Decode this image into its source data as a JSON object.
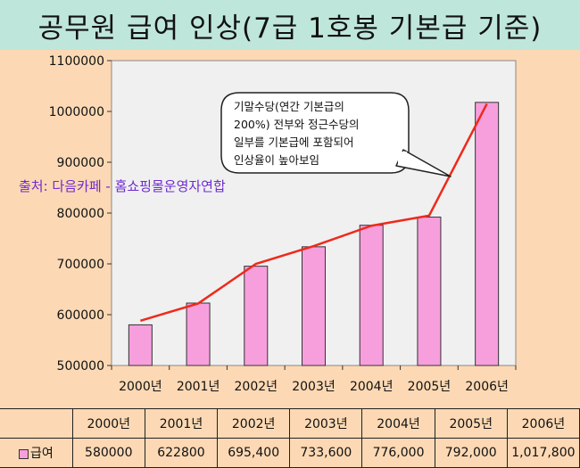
{
  "title": "공무원 급여 인상(7급 1호봉 기본급 기준)",
  "source_note": "출처: 다음카페 - 홈쇼핑몰운영자연합",
  "callout_text": [
    "기말수당(연간 기본급의",
    "200%) 전부와 정근수당의",
    "일부를 기본급에 포함되어",
    "인상율이 높아보임"
  ],
  "colors": {
    "bar": "#f79fdd",
    "line": "#ee2a1c",
    "background": "#fcd9b4",
    "title_bar": "#bfe6da",
    "plot_area": "#f0f0f0"
  },
  "chart_data": {
    "type": "bar",
    "categories": [
      "2000년",
      "2001년",
      "2002년",
      "2003년",
      "2004년",
      "2005년",
      "2006년"
    ],
    "series": [
      {
        "name": "급여",
        "values": [
          580000,
          622800,
          695400,
          733600,
          776000,
          792000,
          1017800
        ]
      }
    ],
    "trend_line_values": [
      588000,
      622000,
      700000,
      735000,
      775000,
      795000,
      1015000
    ],
    "y_ticks": [
      "500000",
      "600000",
      "700000",
      "800000",
      "900000",
      "1000000",
      "1100000"
    ],
    "ylim": [
      500000,
      1100000
    ],
    "grid": false
  },
  "table": {
    "headers": [
      "2000년",
      "2001년",
      "2002년",
      "2003년",
      "2004년",
      "2005년",
      "2006년"
    ],
    "row_label": "급여",
    "values": [
      "580000",
      "622800",
      "695,400",
      "733,600",
      "776,000",
      "792,000",
      "1,017,800"
    ]
  }
}
